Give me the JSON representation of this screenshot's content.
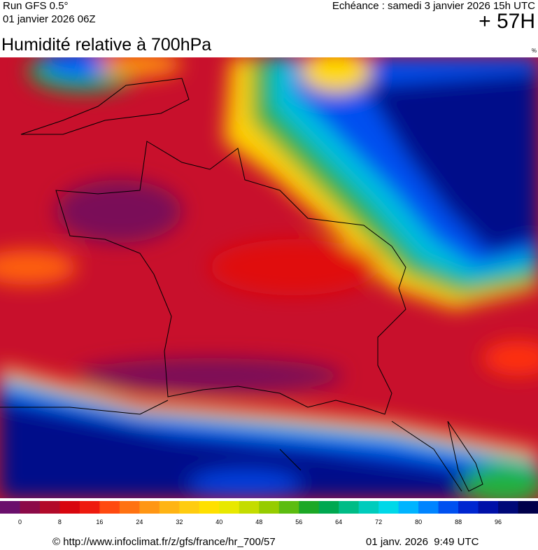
{
  "header": {
    "run": "Run GFS 0.5°",
    "run_date": "01 janvier 2026 06Z",
    "forecast": "Echéance : samedi 3 janvier 2026 15h UTC",
    "lead": "+ 57H"
  },
  "title": "Humidité relative à 700hPa",
  "unit": "%",
  "legend": {
    "ticks": [
      0,
      8,
      16,
      24,
      32,
      40,
      48,
      56,
      64,
      72,
      80,
      88,
      96
    ],
    "step": 4,
    "colors": [
      "#6a0f6c",
      "#8c0a48",
      "#b20a2a",
      "#d8060e",
      "#ee1a0e",
      "#ff4a10",
      "#ff7212",
      "#ff9614",
      "#ffb414",
      "#ffcc10",
      "#ffe000",
      "#e8e800",
      "#c4dc00",
      "#96cc00",
      "#5cbc10",
      "#1ca826",
      "#00a850",
      "#00bc86",
      "#00ccbc",
      "#00d8e8",
      "#00b4ff",
      "#0084ff",
      "#0050f0",
      "#0026d0",
      "#0010a8",
      "#000878",
      "#00004a"
    ]
  },
  "footer": {
    "source": "© http://www.infoclimat.fr/z/gfs/france/hr_700/57",
    "generated": "01 janv. 2026  9:49 UTC"
  }
}
